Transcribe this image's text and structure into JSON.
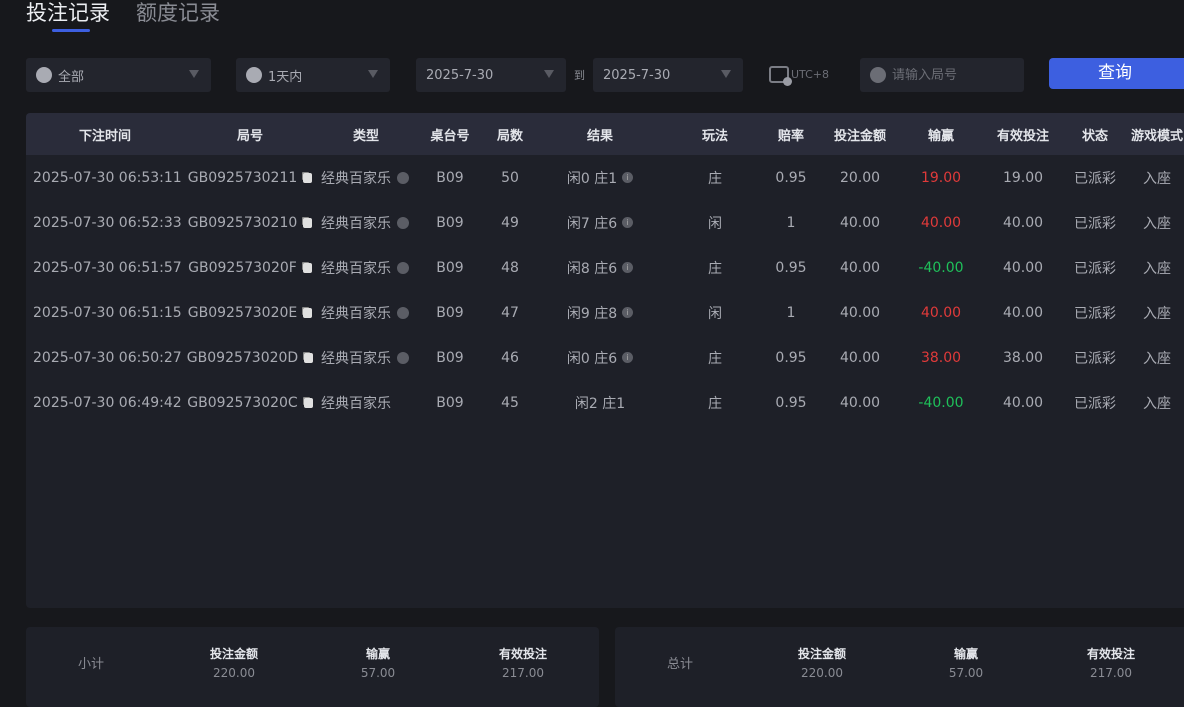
{
  "tabs": [
    "投注记录",
    "额度记录"
  ],
  "filters": {
    "game": "全部",
    "period": "1天内",
    "date_from": "2025-7-30",
    "to_label": "到",
    "date_to": "2025-7-30",
    "timezone": "UTC+8",
    "round_placeholder": "请输入局号",
    "query_label": "查询"
  },
  "colors": {
    "accent": "#3d5fe0",
    "win": "#e03a3a",
    "loss": "#1fc05a"
  },
  "table": {
    "headers": [
      "下注时间",
      "局号",
      "类型",
      "桌台号",
      "局数",
      "结果",
      "玩法",
      "赔率",
      "投注金额",
      "输赢",
      "有效投注",
      "状态",
      "游戏模式"
    ],
    "rows": [
      {
        "time": "2025-07-30 06:53:11",
        "round": "GB0925730211",
        "type": "经典百家乐",
        "table": "B09",
        "num": "50",
        "result": "闲0 庄1",
        "play": "庄",
        "odds": "0.95",
        "amount": "20.00",
        "winloss": "19.00",
        "valid": "19.00",
        "status": "已派彩",
        "mode": "入座",
        "sign": "win",
        "info": true
      },
      {
        "time": "2025-07-30 06:52:33",
        "round": "GB0925730210",
        "type": "经典百家乐",
        "table": "B09",
        "num": "49",
        "result": "闲7 庄6",
        "play": "闲",
        "odds": "1",
        "amount": "40.00",
        "winloss": "40.00",
        "valid": "40.00",
        "status": "已派彩",
        "mode": "入座",
        "sign": "win",
        "info": true
      },
      {
        "time": "2025-07-30 06:51:57",
        "round": "GB092573020F",
        "type": "经典百家乐",
        "table": "B09",
        "num": "48",
        "result": "闲8 庄6",
        "play": "庄",
        "odds": "0.95",
        "amount": "40.00",
        "winloss": "-40.00",
        "valid": "40.00",
        "status": "已派彩",
        "mode": "入座",
        "sign": "loss",
        "info": true
      },
      {
        "time": "2025-07-30 06:51:15",
        "round": "GB092573020E",
        "type": "经典百家乐",
        "table": "B09",
        "num": "47",
        "result": "闲9 庄8",
        "play": "闲",
        "odds": "1",
        "amount": "40.00",
        "winloss": "40.00",
        "valid": "40.00",
        "status": "已派彩",
        "mode": "入座",
        "sign": "win",
        "info": true
      },
      {
        "time": "2025-07-30 06:50:27",
        "round": "GB092573020D",
        "type": "经典百家乐",
        "table": "B09",
        "num": "46",
        "result": "闲0 庄6",
        "play": "庄",
        "odds": "0.95",
        "amount": "40.00",
        "winloss": "38.00",
        "valid": "38.00",
        "status": "已派彩",
        "mode": "入座",
        "sign": "win",
        "info": true
      },
      {
        "time": "2025-07-30 06:49:42",
        "round": "GB092573020C",
        "type": "经典百家乐",
        "table": "B09",
        "num": "45",
        "result": "闲2 庄1",
        "play": "庄",
        "odds": "0.95",
        "amount": "40.00",
        "winloss": "-40.00",
        "valid": "40.00",
        "status": "已派彩",
        "mode": "入座",
        "sign": "loss",
        "info": false
      }
    ]
  },
  "subtotal": {
    "label": "小计",
    "amount_label": "投注金额",
    "amount": "220.00",
    "winloss_label": "输赢",
    "winloss": "57.00",
    "valid_label": "有效投注",
    "valid": "217.00"
  },
  "total": {
    "label": "总计",
    "amount_label": "投注金额",
    "amount": "220.00",
    "winloss_label": "输赢",
    "winloss": "57.00",
    "valid_label": "有效投注",
    "valid": "217.00"
  }
}
